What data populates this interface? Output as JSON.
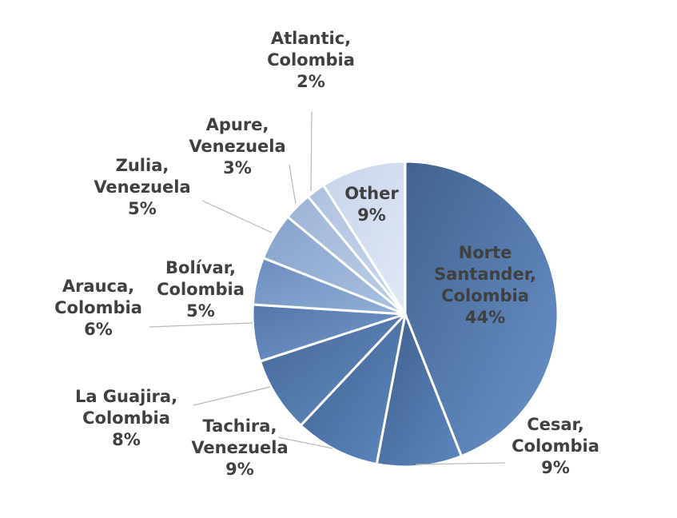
{
  "chart_data": {
    "type": "pie",
    "start_angle_deg": 0,
    "direction": "clockwise",
    "legend": "none",
    "slices": [
      {
        "lines": [
          "Norte",
          "Santander,",
          "Colombia"
        ],
        "value": 44,
        "value_label": "44%",
        "color": "#5a82b8",
        "gradient_from": "#42628e",
        "gradient_to": "#6a93cb",
        "label_placement": "inside",
        "label_color": "#3c4660"
      },
      {
        "lines": [
          "Cesar,",
          "Colombia"
        ],
        "value": 9,
        "value_label": "9%",
        "color": "#4f75ab",
        "gradient_from": "#3f5f8c",
        "gradient_to": "#5d86bf",
        "label_placement": "outside"
      },
      {
        "lines": [
          "Tachira,",
          "Venezuela"
        ],
        "value": 9,
        "value_label": "9%",
        "color": "#4f77ad",
        "gradient_from": "#40618f",
        "gradient_to": "#5e88c0",
        "label_placement": "outside"
      },
      {
        "lines": [
          "La Guajira,",
          "Colombia"
        ],
        "value": 8,
        "value_label": "8%",
        "color": "#547cb2",
        "gradient_from": "#446694",
        "gradient_to": "#648dc4",
        "label_placement": "outside"
      },
      {
        "lines": [
          "Arauca,",
          "Colombia"
        ],
        "value": 6,
        "value_label": "6%",
        "color": "#6589bd",
        "gradient_from": "#5477ab",
        "gradient_to": "#769acc",
        "label_placement": "outside"
      },
      {
        "lines": [
          "Bolívar,",
          "Colombia"
        ],
        "value": 5,
        "value_label": "5%",
        "color": "#7d9dcb",
        "gradient_from": "#6b8cbd",
        "gradient_to": "#90afd8",
        "label_placement": "outside"
      },
      {
        "lines": [
          "Zulia,",
          "Venezuela"
        ],
        "value": 5,
        "value_label": "5%",
        "color": "#98b2d7",
        "gradient_from": "#86a2cb",
        "gradient_to": "#aac1e2",
        "label_placement": "outside"
      },
      {
        "lines": [
          "Apure,",
          "Venezuela"
        ],
        "value": 3,
        "value_label": "3%",
        "color": "#adc1df",
        "gradient_from": "#9db3d5",
        "gradient_to": "#bfd0e8",
        "label_placement": "outside"
      },
      {
        "lines": [
          "Atlantic,",
          "Colombia"
        ],
        "value": 2,
        "value_label": "2%",
        "color": "#bccde6",
        "gradient_from": "#adc0de",
        "gradient_to": "#cbd9ee",
        "label_placement": "outside"
      },
      {
        "lines": [
          "Other"
        ],
        "value": 9,
        "value_label": "9%",
        "color": "#d4def0",
        "gradient_from": "#c6d3ea",
        "gradient_to": "#e2e9f6",
        "label_placement": "inside"
      }
    ]
  }
}
